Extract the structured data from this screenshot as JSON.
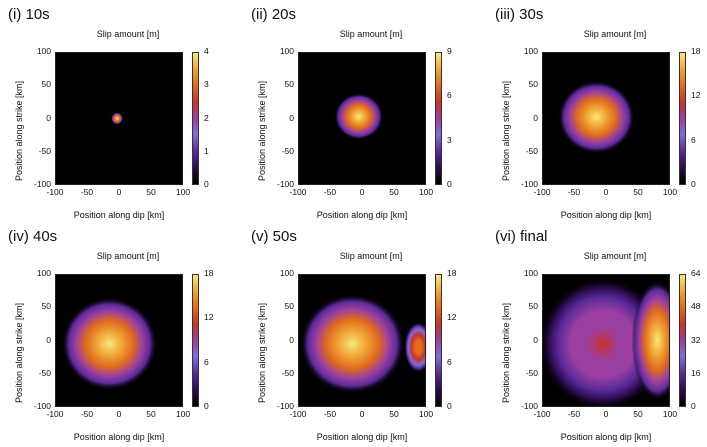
{
  "colorbar_title": "Slip amount [m]",
  "xlabel": "Position along dip [km]",
  "ylabel": "Position along strike [km]",
  "axis_ticks": [
    "100",
    "50",
    "0",
    "-50",
    "-100"
  ],
  "xaxis_ticks": [
    "-100",
    "-50",
    "0",
    "50",
    "100"
  ],
  "chart_data": [
    {
      "type": "heatmap",
      "title": "(i) 10s",
      "xlim": [
        -100,
        100
      ],
      "ylim": [
        -100,
        100
      ],
      "colorbar_ticks": [
        "4",
        "3",
        "2",
        "1",
        "0"
      ],
      "colorbar_max": 4,
      "patches": [
        {
          "x": -3,
          "y": 0,
          "rx": 9,
          "ry": 9,
          "peak": 4
        }
      ]
    },
    {
      "type": "heatmap",
      "title": "(ii) 20s",
      "xlim": [
        -100,
        100
      ],
      "ylim": [
        -100,
        100
      ],
      "colorbar_ticks": [
        "9",
        "6",
        "3",
        "0"
      ],
      "colorbar_max": 9,
      "patches": [
        {
          "x": -5,
          "y": 3,
          "rx": 38,
          "ry": 35,
          "peak": 9
        }
      ]
    },
    {
      "type": "heatmap",
      "title": "(iii) 30s",
      "xlim": [
        -100,
        100
      ],
      "ylim": [
        -100,
        100
      ],
      "colorbar_ticks": [
        "18",
        "12",
        "6",
        "0"
      ],
      "colorbar_max": 18,
      "patches": [
        {
          "x": -15,
          "y": 2,
          "rx": 60,
          "ry": 55,
          "peak": 18
        }
      ]
    },
    {
      "type": "heatmap",
      "title": "(iv) 40s",
      "xlim": [
        -100,
        100
      ],
      "ylim": [
        -100,
        100
      ],
      "colorbar_ticks": [
        "18",
        "12",
        "6",
        "0"
      ],
      "colorbar_max": 18,
      "patches": [
        {
          "x": -15,
          "y": -5,
          "rx": 75,
          "ry": 70,
          "peak": 18
        }
      ]
    },
    {
      "type": "heatmap",
      "title": "(v) 50s",
      "xlim": [
        -100,
        100
      ],
      "ylim": [
        -100,
        100
      ],
      "colorbar_ticks": [
        "18",
        "12",
        "6",
        "0"
      ],
      "colorbar_max": 18,
      "patches": [
        {
          "x": -15,
          "y": -5,
          "rx": 82,
          "ry": 75,
          "peak": 18
        },
        {
          "x": 88,
          "y": -10,
          "rx": 22,
          "ry": 38,
          "peak": 14
        }
      ]
    },
    {
      "type": "heatmap",
      "title": "(vi) final",
      "xlim": [
        -100,
        100
      ],
      "ylim": [
        -100,
        100
      ],
      "colorbar_ticks": [
        "64",
        "48",
        "32",
        "16",
        "0"
      ],
      "colorbar_max": 64,
      "patches": [
        {
          "x": -5,
          "y": -5,
          "rx": 100,
          "ry": 100,
          "peak": 40
        },
        {
          "x": 80,
          "y": 0,
          "rx": 40,
          "ry": 90,
          "peak": 64
        }
      ]
    }
  ]
}
